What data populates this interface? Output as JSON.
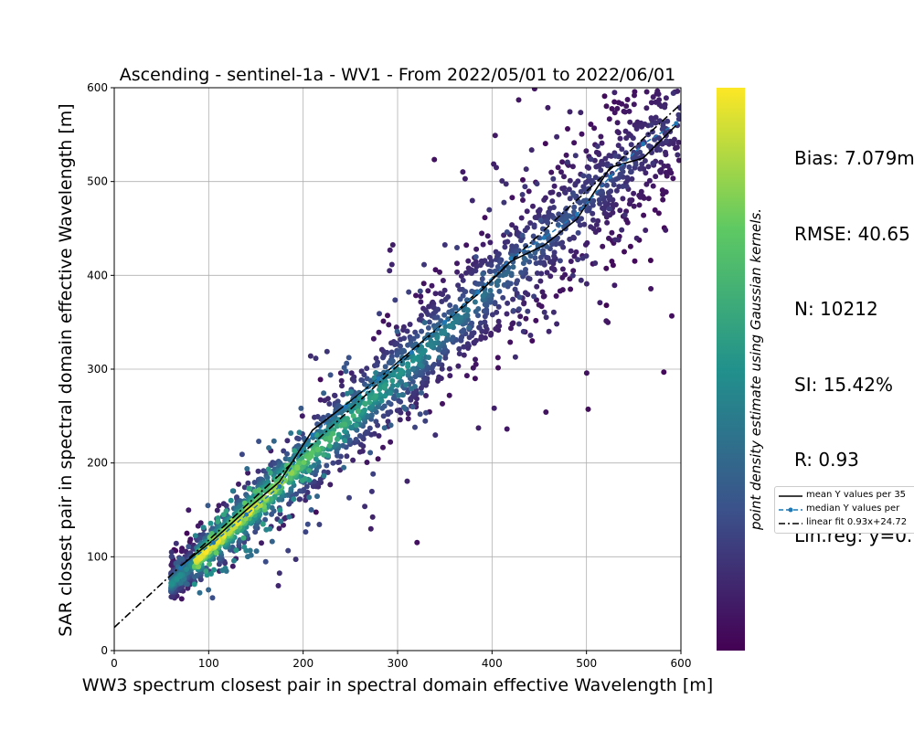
{
  "chart_data": {
    "type": "scatter",
    "title": "Ascending - sentinel-1a - WV1 - From 2022/05/01 to 2022/06/01",
    "xlabel": "WW3 spectrum closest pair in spectral domain effective Wavelength [m]",
    "ylabel": "SAR closest pair in spectral domain effective Wavelength [m]",
    "xlim": [
      0,
      600
    ],
    "ylim": [
      0,
      600
    ],
    "xticks": [
      0,
      100,
      200,
      300,
      400,
      500,
      600
    ],
    "yticks": [
      0,
      100,
      200,
      300,
      400,
      500,
      600
    ],
    "grid": true,
    "colorbar_label": "point density estimate using Gaussian kernels.",
    "colormap": [
      "#440154",
      "#3b528b",
      "#21918c",
      "#5ec962",
      "#fde725"
    ],
    "density_cloud_description_points": [
      [
        70,
        75
      ],
      [
        100,
        105
      ],
      [
        130,
        135
      ],
      [
        160,
        170
      ],
      [
        200,
        215
      ],
      [
        250,
        255
      ],
      [
        300,
        300
      ],
      [
        350,
        340
      ],
      [
        400,
        380
      ],
      [
        450,
        430
      ],
      [
        500,
        470
      ],
      [
        550,
        515
      ]
    ],
    "mean_y_per_bin": {
      "x": [
        70,
        105,
        140,
        175,
        210,
        245,
        280,
        315,
        350,
        385,
        420,
        455,
        490,
        525,
        560,
        595
      ],
      "y": [
        90,
        118,
        150,
        180,
        235,
        262,
        290,
        320,
        350,
        380,
        415,
        432,
        460,
        515,
        525,
        560
      ]
    },
    "median_y_per_bin": {
      "x": [
        70,
        105,
        140,
        175,
        210,
        245,
        280,
        315,
        350,
        385,
        420,
        455,
        490,
        525,
        560,
        595
      ],
      "y": [
        88,
        115,
        145,
        175,
        230,
        260,
        290,
        318,
        350,
        382,
        418,
        440,
        465,
        505,
        540,
        562
      ]
    },
    "linear_fit": {
      "slope": 0.93,
      "intercept": 24.72,
      "x": [
        0,
        600
      ]
    },
    "legend": {
      "placement": "right",
      "entries": [
        "mean Y values per 35",
        "median Y values per",
        "linear fit 0.93x+24.72"
      ]
    },
    "stats": {
      "bias": "Bias: 7.079m",
      "rmse": "RMSE: 40.65",
      "n": "N: 10212",
      "si": "SI: 15.42%",
      "r": "R: 0.93",
      "linreg": "Lin.reg: y=0."
    }
  }
}
